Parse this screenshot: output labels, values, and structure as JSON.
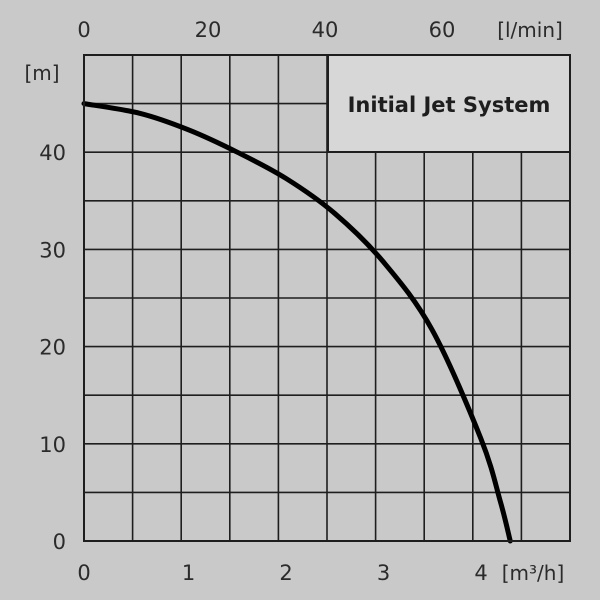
{
  "chart_data": {
    "type": "line",
    "title": "Initial Jet System",
    "ylabel": "[m]",
    "xlabel": "[m³/h]",
    "x2label": "[l/min]",
    "xlim": [
      0,
      5
    ],
    "ylim": [
      0,
      50
    ],
    "x2lim": [
      0,
      83.33
    ],
    "grid": true,
    "xticks": [
      0,
      1,
      2,
      3,
      4
    ],
    "yticks": [
      0,
      10,
      20,
      30,
      40
    ],
    "x2ticks": [
      0,
      20,
      40,
      60
    ],
    "series": [
      {
        "x": [
          0,
          0.5,
          1.0,
          1.5,
          2.0,
          2.5,
          3.0,
          3.5,
          4.0,
          4.2,
          4.3
        ],
        "y": [
          45,
          44,
          42.3,
          40,
          37.3,
          33.7,
          28.7,
          21.7,
          10.5,
          4,
          0
        ]
      }
    ],
    "colors": {
      "background": "#c9c9c9",
      "grid": "#1e1e1e",
      "curve": "#000000",
      "title_box": "#d7d7d7"
    }
  }
}
